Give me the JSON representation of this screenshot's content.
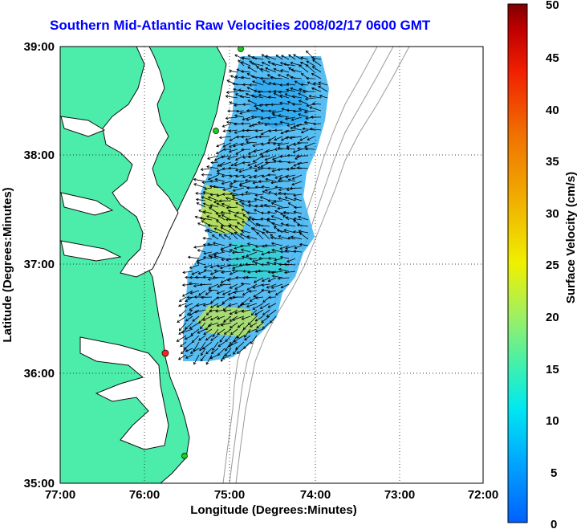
{
  "title": "Southern Mid-Atlantic Raw Velocities 2008/02/17 0600 GMT",
  "xaxis": {
    "label": "Longitude (Degrees:Minutes)",
    "ticks": [
      "77:00",
      "76:00",
      "75:00",
      "74:00",
      "73:00",
      "72:00"
    ]
  },
  "yaxis": {
    "label": "Latitude (Degrees:Minutes)",
    "ticks": [
      "39:00",
      "38:00",
      "37:00",
      "36:00",
      "35:00"
    ]
  },
  "colorbar": {
    "label": "Surface Velocity (cm/s)",
    "ticks": [
      "50",
      "45",
      "40",
      "35",
      "30",
      "25",
      "20",
      "15",
      "10",
      "5",
      "0"
    ],
    "colors": [
      "#0060ff",
      "#00a8ff",
      "#00e8f0",
      "#3ef0b0",
      "#a0f060",
      "#f0f000",
      "#f0b000",
      "#f07000",
      "#f02000",
      "#c00000",
      "#800000"
    ]
  },
  "colors": {
    "land": "#4cedaa",
    "coast": "#111111",
    "bathymetry": "#9a9a9a",
    "grid": "#000000",
    "title": "#0000ff",
    "station_green": "#19d019",
    "station_red": "#ff2020"
  }
}
